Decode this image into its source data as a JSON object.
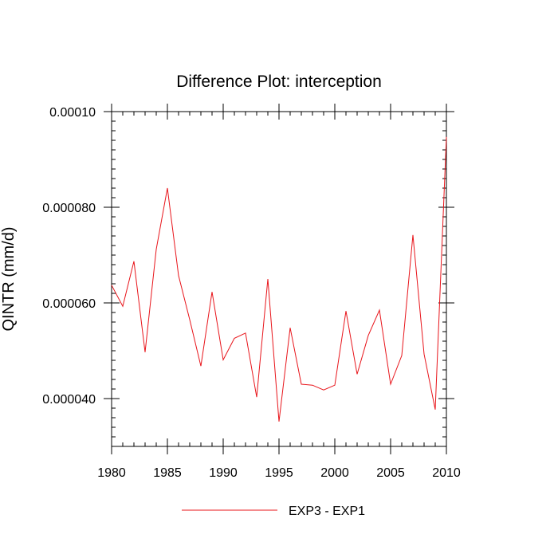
{
  "chart_data": {
    "type": "line",
    "title": "Difference Plot: interception",
    "xlabel": "",
    "ylabel": "QINTR  (mm/d)",
    "xlim": [
      1980,
      2010
    ],
    "ylim": [
      3e-05,
      0.0001
    ],
    "x_ticks": [
      1980,
      1985,
      1990,
      1995,
      2000,
      2005,
      2010
    ],
    "x_tick_labels": [
      "1980",
      "1985",
      "1990",
      "1995",
      "2000",
      "2005",
      "2010"
    ],
    "y_ticks": [
      4e-05,
      6e-05,
      8e-05,
      0.0001
    ],
    "y_tick_labels": [
      "0.000040",
      "0.000060",
      "0.000080",
      "0.00010"
    ],
    "grid": false,
    "legend_position": "bottom-center",
    "x": [
      1980,
      1981,
      1982,
      1983,
      1984,
      1985,
      1986,
      1987,
      1988,
      1989,
      1990,
      1991,
      1992,
      1993,
      1994,
      1995,
      1996,
      1997,
      1998,
      1999,
      2000,
      2001,
      2002,
      2003,
      2004,
      2005,
      2006,
      2007,
      2008,
      2009,
      2010
    ],
    "series": [
      {
        "name": "EXP3 - EXP1",
        "color": "#e8141a",
        "values": [
          6.37e-05,
          5.93e-05,
          6.87e-05,
          4.97e-05,
          7.12e-05,
          8.4e-05,
          6.57e-05,
          5.65e-05,
          4.68e-05,
          6.23e-05,
          4.81e-05,
          5.26e-05,
          5.37e-05,
          4.03e-05,
          6.5e-05,
          3.52e-05,
          5.48e-05,
          4.3e-05,
          4.28e-05,
          4.18e-05,
          4.28e-05,
          5.83e-05,
          4.51e-05,
          5.32e-05,
          5.85e-05,
          4.3e-05,
          4.9e-05,
          7.42e-05,
          4.93e-05,
          3.77e-05,
          9.47e-05
        ]
      }
    ]
  }
}
